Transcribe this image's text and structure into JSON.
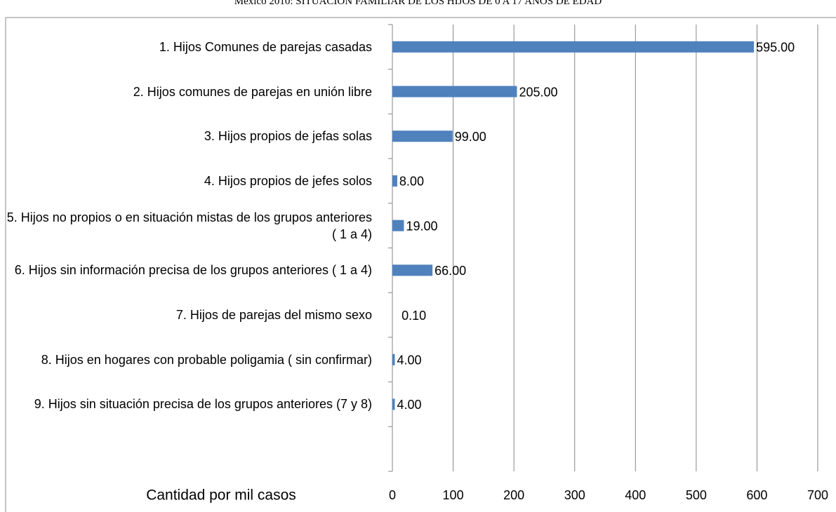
{
  "chart_data": {
    "type": "bar",
    "orientation": "horizontal",
    "title": "México 2010: SITUACIÓN FAMILIAR DE LOS HIJOS DE 0 A 17 AÑOS DE EDAD",
    "xlabel": "Cantidad por mil casos",
    "categories": [
      "1. Hijos Comunes de parejas casadas",
      "2. Hijos comunes de parejas en unión libre ",
      "3. Hijos propios de jefas  solas ",
      "4. Hijos propios de jefes solos",
      "5. Hijos no propios o en situación mistas de los grupos anteriores ( 1 a 4)",
      "6. Hijos sin información precisa de los grupos anteriores ( 1 a 4)",
      "7. Hijos de parejas del mismo sexo",
      "8. Hijos en hogares con probable poligamia ( sin confirmar)",
      "9. Hijos sin situación precisa de los grupos anteriores (7 y 8)",
      null
    ],
    "values": [
      595,
      205,
      99,
      8,
      19,
      66,
      0.1,
      4,
      4,
      null
    ],
    "value_labels": [
      "595.00",
      "205.00",
      "99.00",
      "8.00",
      "19.00",
      "66.00",
      "0.10",
      "4.00",
      "4.00",
      null
    ],
    "color": "#4f81bd",
    "xlim": [
      0,
      700
    ],
    "xticks": [
      0,
      100,
      200,
      300,
      400,
      500,
      600,
      700
    ],
    "grid": true
  }
}
